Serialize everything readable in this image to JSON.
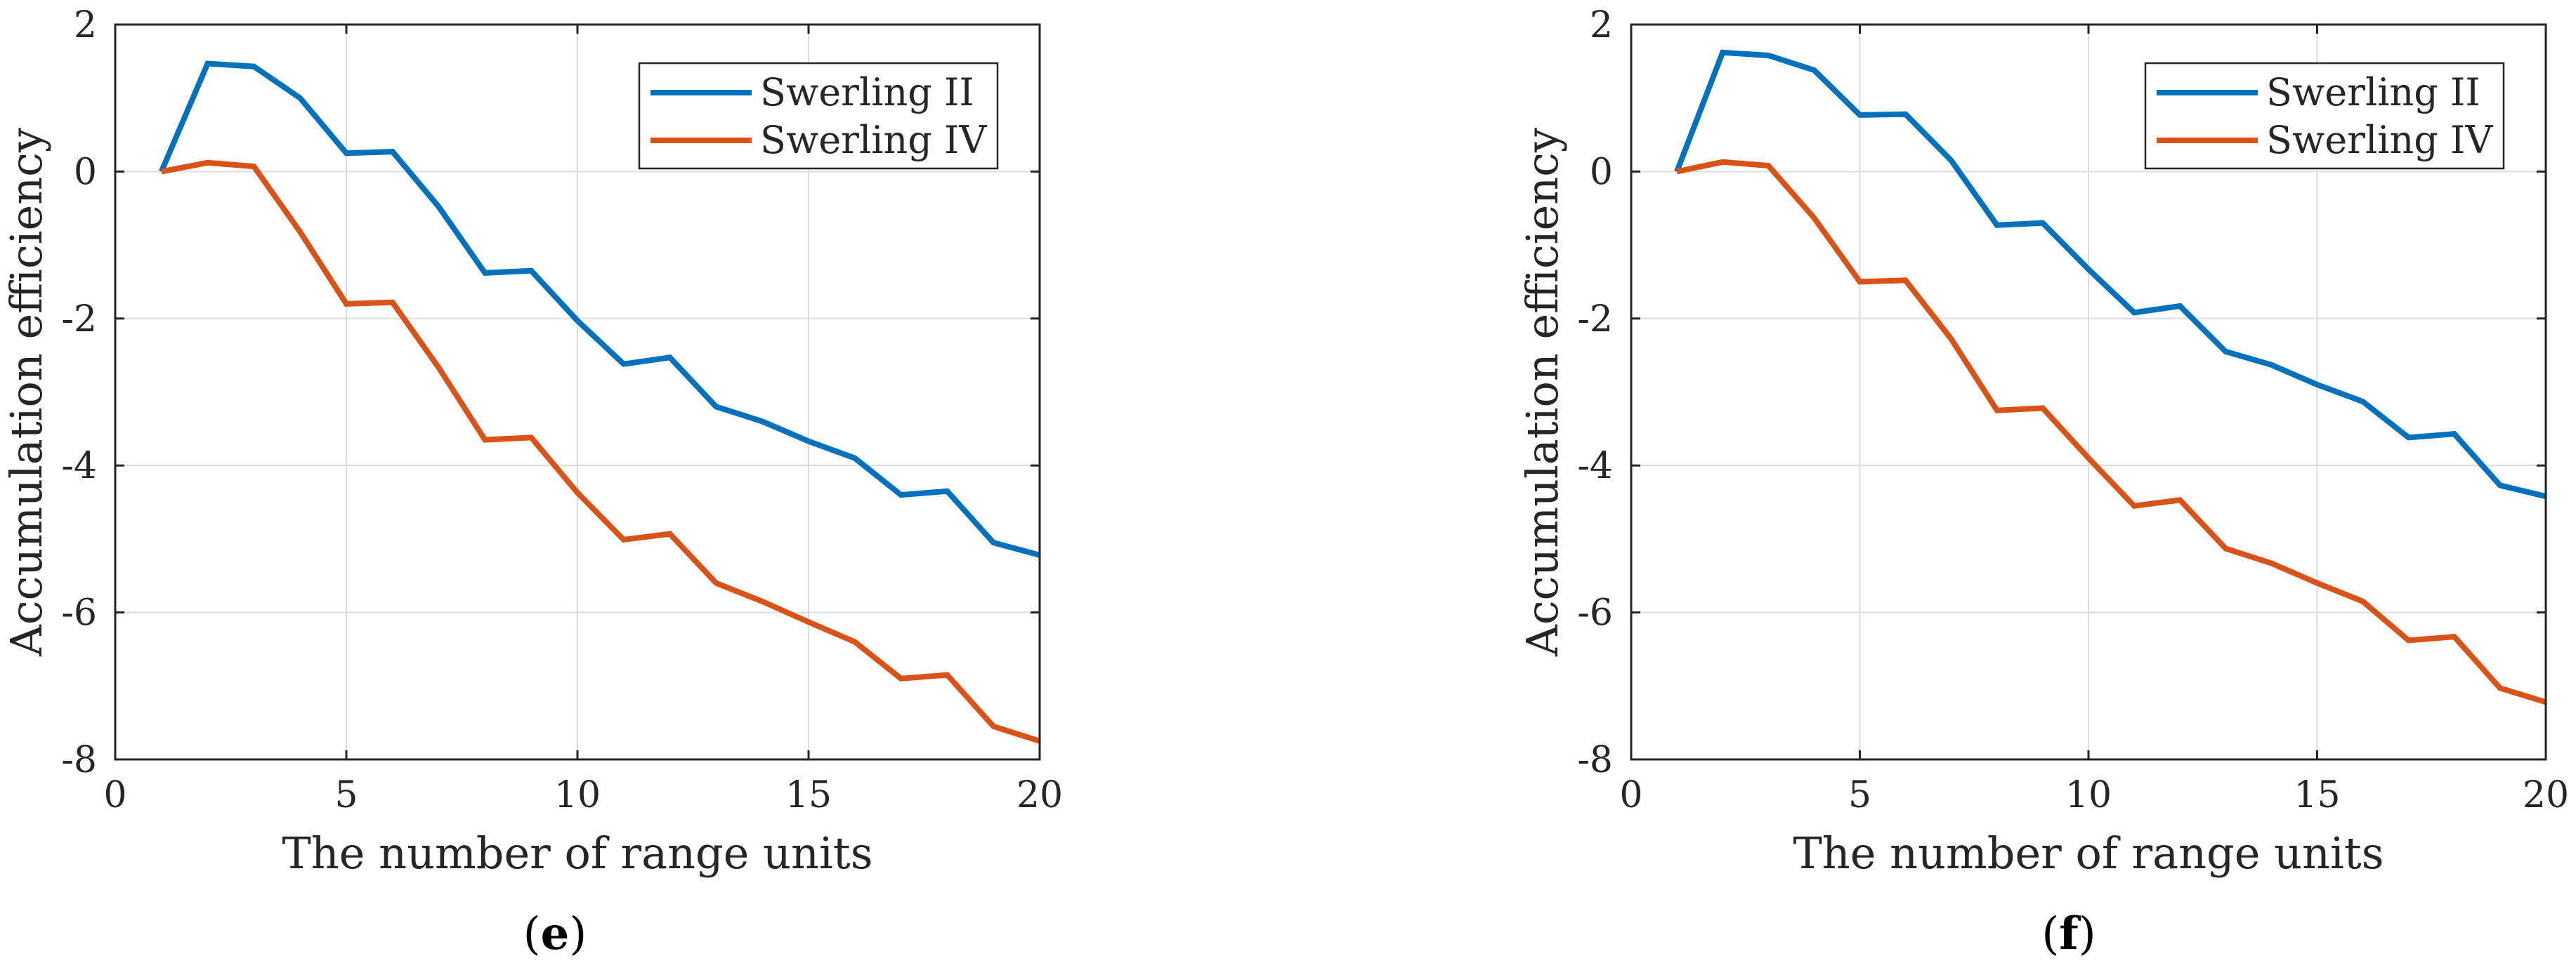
{
  "chart_data": [
    {
      "type": "line",
      "panel_label": "e",
      "x": [
        1,
        2,
        3,
        4,
        5,
        6,
        7,
        8,
        9,
        10,
        11,
        12,
        13,
        14,
        15,
        16,
        17,
        18,
        19,
        20
      ],
      "series": [
        {
          "name": "Swerling II",
          "color": "#0072BD",
          "values": [
            0,
            1.47,
            1.43,
            1.0,
            0.25,
            0.27,
            -0.48,
            -1.38,
            -1.35,
            -2.03,
            -2.62,
            -2.53,
            -3.2,
            -3.4,
            -3.67,
            -3.9,
            -4.4,
            -4.35,
            -5.05,
            -5.22
          ]
        },
        {
          "name": "Swerling IV",
          "color": "#D95319",
          "values": [
            0,
            0.12,
            0.07,
            -0.82,
            -1.8,
            -1.78,
            -2.67,
            -3.65,
            -3.62,
            -4.37,
            -5.01,
            -4.93,
            -5.6,
            -5.85,
            -6.13,
            -6.4,
            -6.9,
            -6.85,
            -7.55,
            -7.75
          ]
        }
      ],
      "xlabel": "The number of range units",
      "ylabel": "Accumulation efficiency",
      "xlim": [
        0,
        20
      ],
      "ylim": [
        -8,
        2
      ],
      "xticks": [
        0,
        5,
        10,
        15,
        20
      ],
      "yticks": [
        -8,
        -6,
        -4,
        -2,
        0,
        2
      ],
      "grid": true,
      "legend_position": "top-right"
    },
    {
      "type": "line",
      "panel_label": "f",
      "x": [
        1,
        2,
        3,
        4,
        5,
        6,
        7,
        8,
        9,
        10,
        11,
        12,
        13,
        14,
        15,
        16,
        17,
        18,
        19,
        20
      ],
      "series": [
        {
          "name": "Swerling II",
          "color": "#0072BD",
          "values": [
            0,
            1.62,
            1.58,
            1.38,
            0.77,
            0.78,
            0.15,
            -0.73,
            -0.7,
            -1.33,
            -1.92,
            -1.83,
            -2.45,
            -2.63,
            -2.9,
            -3.13,
            -3.62,
            -3.57,
            -4.27,
            -4.42
          ]
        },
        {
          "name": "Swerling IV",
          "color": "#D95319",
          "values": [
            0,
            0.13,
            0.08,
            -0.63,
            -1.5,
            -1.48,
            -2.28,
            -3.25,
            -3.22,
            -3.9,
            -4.55,
            -4.47,
            -5.13,
            -5.33,
            -5.6,
            -5.85,
            -6.38,
            -6.33,
            -7.03,
            -7.22
          ]
        }
      ],
      "xlabel": "The number of range units",
      "ylabel": "Accumulation efficiency",
      "xlim": [
        0,
        20
      ],
      "ylim": [
        -8,
        2
      ],
      "xticks": [
        0,
        5,
        10,
        15,
        20
      ],
      "yticks": [
        -8,
        -6,
        -4,
        -2,
        0,
        2
      ],
      "grid": true,
      "legend_position": "top-right"
    }
  ]
}
